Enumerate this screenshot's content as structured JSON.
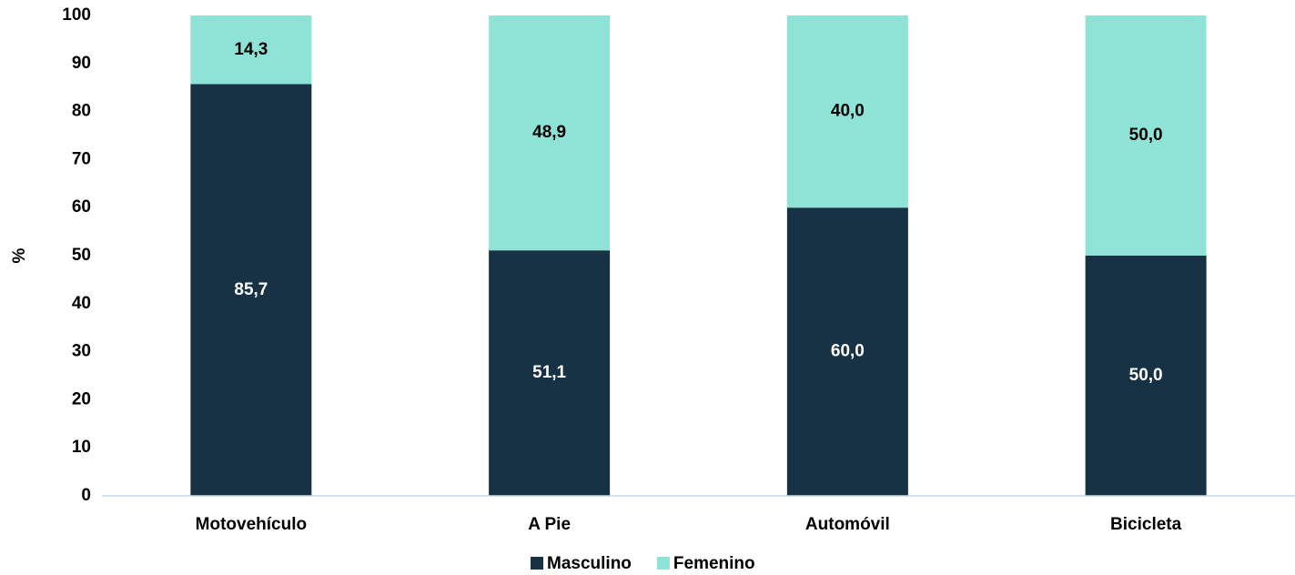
{
  "chart_data": {
    "type": "stacked_bar",
    "y_label": "%",
    "categories": [
      "Motovehículo",
      "A Pie",
      "Automóvil",
      "Bicicleta"
    ],
    "series": [
      {
        "name": "Masculino",
        "color": "#173245",
        "values": [
          85.7,
          51.1,
          60,
          50
        ],
        "value_labels": [
          "85,7",
          "51,1",
          "60,0",
          "50,0"
        ]
      },
      {
        "name": "Femenino",
        "color": "#8ee3d6",
        "values": [
          14.3,
          48.9,
          40,
          50
        ],
        "value_labels": [
          "14,3",
          "48,9",
          "40,0",
          "50,0"
        ]
      }
    ],
    "ylim": [
      0,
      100
    ],
    "yticks": [
      0,
      10,
      20,
      30,
      40,
      50,
      60,
      70,
      80,
      90,
      100
    ],
    "grid": false,
    "legend": "bottom"
  }
}
